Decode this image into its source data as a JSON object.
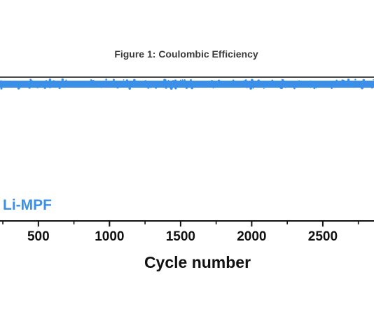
{
  "chart_data": {
    "type": "line",
    "title": "Figure 1: Coulombic Efficiency",
    "xlabel": "Cycle number",
    "ylabel": "",
    "xlim": [
      230,
      2860
    ],
    "ylim": [
      0,
      100
    ],
    "x_major_ticks": [
      500,
      1000,
      1500,
      2000,
      2500
    ],
    "x_tick_labels": [
      "500",
      "1000",
      "1500",
      "2000",
      "2500"
    ],
    "x_minor_ticks": [
      250,
      750,
      1250,
      1750,
      2250,
      2750
    ],
    "grid": false,
    "legend": "bottom-left",
    "series": [
      {
        "name": "Li-MPF",
        "color": "#3a8fe8",
        "x_start": 230,
        "x_end": 2860,
        "value": 100
      }
    ],
    "reference_line": {
      "value": 100,
      "color": "#111111"
    }
  }
}
